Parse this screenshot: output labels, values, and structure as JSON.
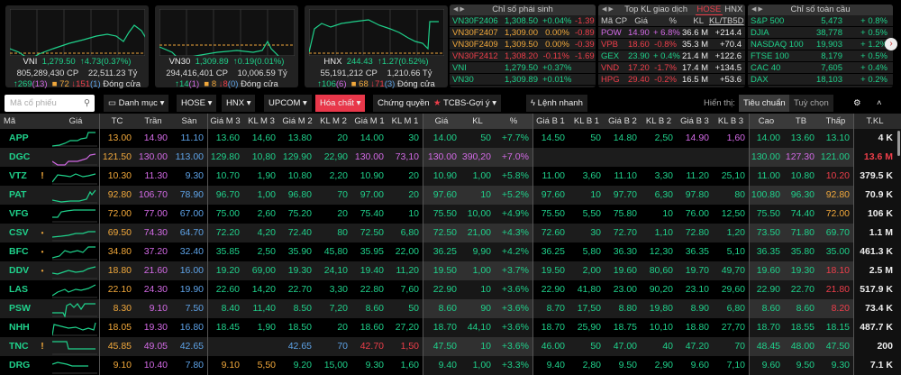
{
  "indices": [
    {
      "name": "VNI",
      "value": "1,279.50",
      "change": "4.73(0.37%)",
      "volume": "805,289,430 CP",
      "turnover": "22,511.23 Tỷ",
      "up": "269",
      "up_ceiling": "(13)",
      "flat": "72",
      "down": "151",
      "down_floor": "(1)",
      "status": "Đóng cửa"
    },
    {
      "name": "VN30",
      "value": "1,309.89",
      "change": "0.19(0.01%)",
      "volume": "294,416,401 CP",
      "turnover": "10,006.59 Tỷ",
      "up": "14",
      "up_ceiling": "(1)",
      "flat": "8",
      "down": "8",
      "down_floor": "(0)",
      "status": "Đóng cửa"
    },
    {
      "name": "HNX",
      "value": "244.43",
      "change": "1.27(0.52%)",
      "volume": "55,191,212 CP",
      "turnover": "1,210.66 Tỷ",
      "up": "106",
      "up_ceiling": "(6)",
      "flat": "68",
      "down": "71",
      "down_floor": "(3)",
      "status": "Đóng cửa"
    }
  ],
  "derivatives": {
    "title": "Chỉ số phái sinh",
    "rows": [
      {
        "name": "VN30F2406",
        "price": "1,308.50",
        "pct": "+0.04%",
        "diff": "-1.39",
        "c": "g"
      },
      {
        "name": "VN30F2407",
        "price": "1,309.00",
        "pct": "0.00%",
        "diff": "-0.89",
        "c": "y"
      },
      {
        "name": "VN30F2409",
        "price": "1,309.50",
        "pct": "0.00%",
        "diff": "-0.39",
        "c": "y"
      },
      {
        "name": "VN30F2412",
        "price": "1,308.20",
        "pct": "-0.11%",
        "diff": "-1.69",
        "c": "r"
      },
      {
        "name": "VNI",
        "price": "1,279.50",
        "pct": "+0.37%",
        "diff": "",
        "c": "g"
      },
      {
        "name": "VN30",
        "price": "1,309.89",
        "pct": "+0.01%",
        "diff": "",
        "c": "g"
      }
    ]
  },
  "top_volume": {
    "title": "Top KL giao dịch",
    "tabs": [
      "HOSE",
      "HNX"
    ],
    "headers": [
      "Mã CP",
      "Giá",
      "%",
      "KL",
      "KL/TB5D"
    ],
    "rows": [
      {
        "code": "POW",
        "price": "14.90",
        "pct": "+ 6.8%",
        "kl": "36.6 M",
        "ratio": "+214.4",
        "c": "p"
      },
      {
        "code": "VPB",
        "price": "18.60",
        "pct": "-0.8%",
        "kl": "35.3 M",
        "ratio": "+70.4",
        "c": "r"
      },
      {
        "code": "GEX",
        "price": "23.90",
        "pct": "+ 0.4%",
        "kl": "21.4 M",
        "ratio": "+122.6",
        "c": "g"
      },
      {
        "code": "VND",
        "price": "17.20",
        "pct": "-1.7%",
        "kl": "17.4 M",
        "ratio": "+134.5",
        "c": "r"
      },
      {
        "code": "HPG",
        "price": "29.40",
        "pct": "-0.2%",
        "kl": "16.5 M",
        "ratio": "+53.6",
        "c": "r"
      }
    ]
  },
  "global": {
    "title": "Chỉ số toàn cầu",
    "rows": [
      {
        "name": "S&P 500",
        "value": "5,473",
        "pct": "+ 0.8%"
      },
      {
        "name": "DJIA",
        "value": "38,778",
        "pct": "+ 0.5%"
      },
      {
        "name": "NASDAQ 100",
        "value": "19,903",
        "pct": "+ 1.2%"
      },
      {
        "name": "FTSE 100",
        "value": "8,179",
        "pct": "+ 0.5%"
      },
      {
        "name": "CAC 40",
        "value": "7,605",
        "pct": "+ 0.4%"
      },
      {
        "name": "DAX",
        "value": "18,103",
        "pct": "+ 0.2%"
      }
    ]
  },
  "toolbar": {
    "search_placeholder": "Mã cổ phiếu",
    "danh_muc": "Danh mục",
    "hose": "HOSE",
    "hnx": "HNX",
    "upcom": "UPCOM",
    "hoa_chat": "Hóa chất",
    "chung_quyen": "Chứng quyền",
    "tcbs": "TCBS-Gợi ý",
    "lenh_nhanh": "Lệnh nhanh",
    "hien_thi": "Hiển thị:",
    "tieu_chuan": "Tiêu chuẩn",
    "tuy_chon": "Tuỳ chọn"
  },
  "table": {
    "headers": [
      "Mã",
      "Giá",
      "TC",
      "Trần",
      "Sàn",
      "Giá M 3",
      "KL M 3",
      "Giá M 2",
      "KL M 2",
      "Giá M 1",
      "KL M 1",
      "Giá",
      "KL",
      "%",
      "Giá B 1",
      "KL B 1",
      "Giá B 2",
      "KL B 2",
      "Giá B 3",
      "KL B 3",
      "Cao",
      "TB",
      "Thấp",
      "T.KL"
    ],
    "rows": [
      {
        "code": "APP",
        "flag": "",
        "v": [
          "13.00",
          "14.90",
          "11.10",
          "13.60",
          "14,60",
          "13.80",
          "20",
          "14.00",
          "30",
          "14.00",
          "50",
          "+7.7%",
          "14.50",
          "50",
          "14.80",
          "2,50",
          "14.90",
          "1,60",
          "14.00",
          "13.60",
          "13.10",
          "4 K"
        ],
        "c": "ypbgggggggggggggppgggw"
      },
      {
        "code": "DGC",
        "flag": "",
        "v": [
          "121.50",
          "130.00",
          "113.00",
          "129.80",
          "10,80",
          "129.90",
          "22,90",
          "130.00",
          "73,10",
          "130.00",
          "390,20",
          "+7.0%",
          "",
          "",
          "",
          "",
          "",
          "",
          "130.00",
          "127.30",
          "121.00",
          "13.6 M"
        ],
        "c": "ypbggggpppppgggggggpgrw"
      },
      {
        "code": "VTZ",
        "flag": "!",
        "v": [
          "10.30",
          "11.30",
          "9.30",
          "10.70",
          "1,90",
          "10.80",
          "2,20",
          "10.90",
          "20",
          "10.90",
          "1,00",
          "+5.8%",
          "11.00",
          "3,60",
          "11.10",
          "3,30",
          "11.20",
          "25,10",
          "11.00",
          "10.80",
          "10.20",
          "379.5 K"
        ],
        "c": "ypbgggggggggggggggggrw"
      },
      {
        "code": "PAT",
        "flag": "",
        "v": [
          "92.80",
          "106.70",
          "78.90",
          "96.70",
          "1,00",
          "96.80",
          "70",
          "97.00",
          "20",
          "97.60",
          "10",
          "+5.2%",
          "97.60",
          "10",
          "97.70",
          "6,30",
          "97.80",
          "80",
          "100.80",
          "96.30",
          "92.80",
          "70.9 K"
        ],
        "c": "ypbgggggggggggggggggyw"
      },
      {
        "code": "VFG",
        "flag": "",
        "v": [
          "72.00",
          "77.00",
          "67.00",
          "75.00",
          "2,60",
          "75.20",
          "20",
          "75.40",
          "10",
          "75.50",
          "10,00",
          "+4.9%",
          "75.50",
          "5,50",
          "75.80",
          "10",
          "76.00",
          "12,50",
          "75.50",
          "74.40",
          "72.00",
          "106 K"
        ],
        "c": "ypbgggggggggggggggggyw"
      },
      {
        "code": "CSV",
        "flag": "•",
        "v": [
          "69.50",
          "74.30",
          "64.70",
          "72.20",
          "4,20",
          "72.40",
          "80",
          "72.50",
          "6,80",
          "72.50",
          "21,00",
          "+4.3%",
          "72.60",
          "30",
          "72.70",
          "1,10",
          "72.80",
          "1,20",
          "73.50",
          "71.80",
          "69.70",
          "1.1 M"
        ],
        "c": "ypbggggggggggggggggggw"
      },
      {
        "code": "BFC",
        "flag": "•",
        "v": [
          "34.80",
          "37.20",
          "32.40",
          "35.85",
          "2,50",
          "35.90",
          "45,80",
          "35.95",
          "22,00",
          "36.25",
          "9,90",
          "+4.2%",
          "36.25",
          "5,80",
          "36.30",
          "12,30",
          "36.35",
          "5,10",
          "36.35",
          "35.80",
          "35.00",
          "461.3 K"
        ],
        "c": "ypbggggggggggggggggggw"
      },
      {
        "code": "DDV",
        "flag": "•",
        "v": [
          "18.80",
          "21.60",
          "16.00",
          "19.20",
          "69,00",
          "19.30",
          "24,10",
          "19.40",
          "11,20",
          "19.50",
          "1,00",
          "+3.7%",
          "19.50",
          "2,00",
          "19.60",
          "80,60",
          "19.70",
          "49,70",
          "19.60",
          "19.30",
          "18.10",
          "2.5 M"
        ],
        "c": "ypbgggggggggggggggggrw"
      },
      {
        "code": "LAS",
        "flag": "",
        "v": [
          "22.10",
          "24.30",
          "19.90",
          "22.60",
          "14,20",
          "22.70",
          "3,30",
          "22.80",
          "7,60",
          "22.90",
          "10",
          "+3.6%",
          "22.90",
          "41,80",
          "23.00",
          "90,20",
          "23.10",
          "29,60",
          "22.90",
          "22.70",
          "21.80",
          "517.9 K"
        ],
        "c": "ypbgggggggggggggggggrw"
      },
      {
        "code": "PSW",
        "flag": "",
        "v": [
          "8.30",
          "9.10",
          "7.50",
          "8.40",
          "11,40",
          "8.50",
          "7,20",
          "8.60",
          "50",
          "8.60",
          "90",
          "+3.6%",
          "8.70",
          "17,50",
          "8.80",
          "19,80",
          "8.90",
          "6,80",
          "8.60",
          "8.60",
          "8.20",
          "73.4 K"
        ],
        "c": "ypbgggggggggggggggggrw"
      },
      {
        "code": "NHH",
        "flag": "",
        "v": [
          "18.05",
          "19.30",
          "16.80",
          "18.45",
          "1,90",
          "18.50",
          "20",
          "18.60",
          "27,20",
          "18.70",
          "44,10",
          "+3.6%",
          "18.70",
          "25,90",
          "18.75",
          "10,10",
          "18.80",
          "27,70",
          "18.70",
          "18.55",
          "18.15",
          "487.7 K"
        ],
        "c": "ypbggggggggggggggggggw"
      },
      {
        "code": "TNC",
        "flag": "!",
        "v": [
          "45.85",
          "49.05",
          "42.65",
          "",
          "",
          "42.65",
          "70",
          "42.70",
          "1,50",
          "47.50",
          "10",
          "+3.6%",
          "46.00",
          "50",
          "47.00",
          "40",
          "47.20",
          "70",
          "48.45",
          "48.00",
          "47.50",
          "200"
        ],
        "c": "ypbggbbrrggggggggggggw"
      },
      {
        "code": "DRG",
        "flag": "",
        "v": [
          "9.10",
          "10.40",
          "7.80",
          "9.10",
          "5,50",
          "9.20",
          "15,00",
          "9.30",
          "1,60",
          "9.40",
          "1,00",
          "+3.3%",
          "9.40",
          "2,80",
          "9.50",
          "2,90",
          "9.60",
          "7,10",
          "9.60",
          "9.50",
          "9.30",
          "7.1 K"
        ],
        "c": "ypbyyggggggggggggggggw"
      }
    ]
  }
}
